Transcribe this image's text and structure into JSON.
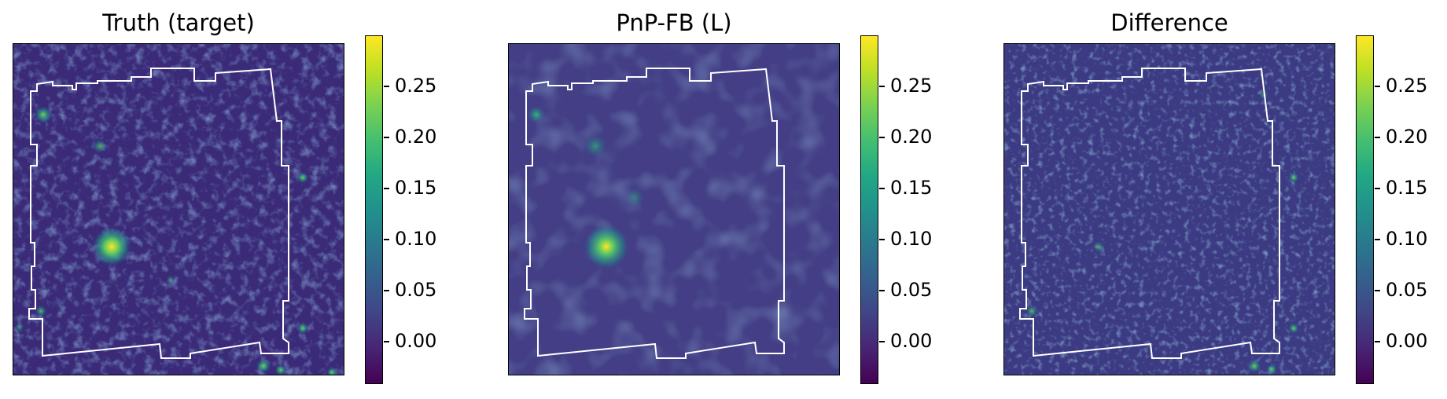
{
  "panels": [
    {
      "title": "Truth (target)",
      "style": "truth"
    },
    {
      "title": "PnP-FB (L)",
      "style": "smooth"
    },
    {
      "title": "Difference",
      "style": "diff"
    }
  ],
  "colorbar": {
    "colormap": "viridis",
    "ticks": [
      "0.25",
      "0.20",
      "0.15",
      "0.10",
      "0.05",
      "0.00"
    ]
  },
  "colors": {
    "background_low": "#3b2a78",
    "bright_spot": "#fde725",
    "footprint_outline": "#ffffff"
  }
}
